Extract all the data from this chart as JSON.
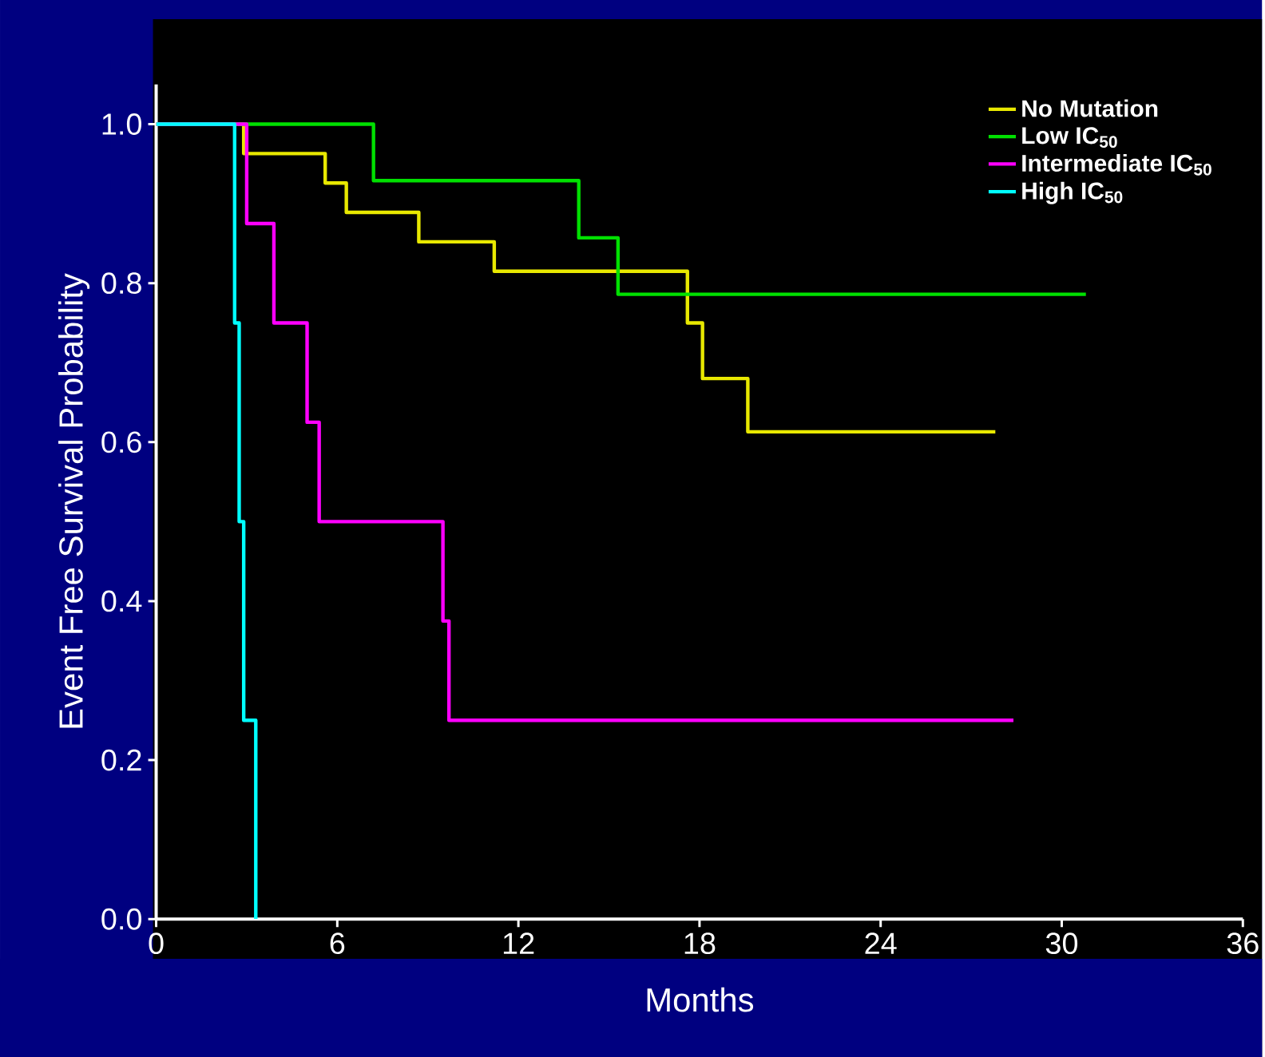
{
  "chart_data": {
    "type": "step",
    "xlabel": "Months",
    "ylabel": "Event Free Survival Probability",
    "xlim": [
      0,
      36
    ],
    "ylim": [
      0,
      1.05
    ],
    "xticks": [
      0,
      6,
      12,
      18,
      24,
      30,
      36
    ],
    "yticks": [
      {
        "value": 0,
        "label": "0.0"
      },
      {
        "value": 0.2,
        "label": "0.2"
      },
      {
        "value": 0.4,
        "label": "0.4"
      },
      {
        "value": 0.6,
        "label": "0.6"
      },
      {
        "value": 0.8,
        "label": "0.8"
      },
      {
        "value": 1,
        "label": "1.0"
      }
    ],
    "legend": "top right",
    "grid": false,
    "series": [
      {
        "name": "No Mutation",
        "color": "#e8e800",
        "x": [
          0,
          2.9,
          5.6,
          6.3,
          8.7,
          11.2,
          17.6,
          18.1,
          19.6,
          27.8
        ],
        "values": [
          1.0,
          0.963,
          0.926,
          0.889,
          0.852,
          0.815,
          0.75,
          0.68,
          0.613,
          0.613
        ]
      },
      {
        "name": "Low IC$_{50}$",
        "color": "#00e000",
        "x": [
          0,
          7.2,
          14.0,
          15.3,
          30.8
        ],
        "values": [
          1.0,
          0.929,
          0.857,
          0.786,
          0.786
        ]
      },
      {
        "name": "Intermediate IC$_{50}$",
        "color": "#ff00ff",
        "x": [
          0,
          3.0,
          3.9,
          5.0,
          5.4,
          9.5,
          9.7,
          28.4
        ],
        "values": [
          1.0,
          0.875,
          0.75,
          0.625,
          0.5,
          0.375,
          0.25,
          0.25
        ]
      },
      {
        "name": "High IC$_{50}$",
        "color": "#00ffff",
        "x": [
          0,
          2.6,
          2.75,
          2.9,
          3.3
        ],
        "values": [
          1.0,
          0.75,
          0.5,
          0.25,
          0.0
        ]
      }
    ]
  }
}
